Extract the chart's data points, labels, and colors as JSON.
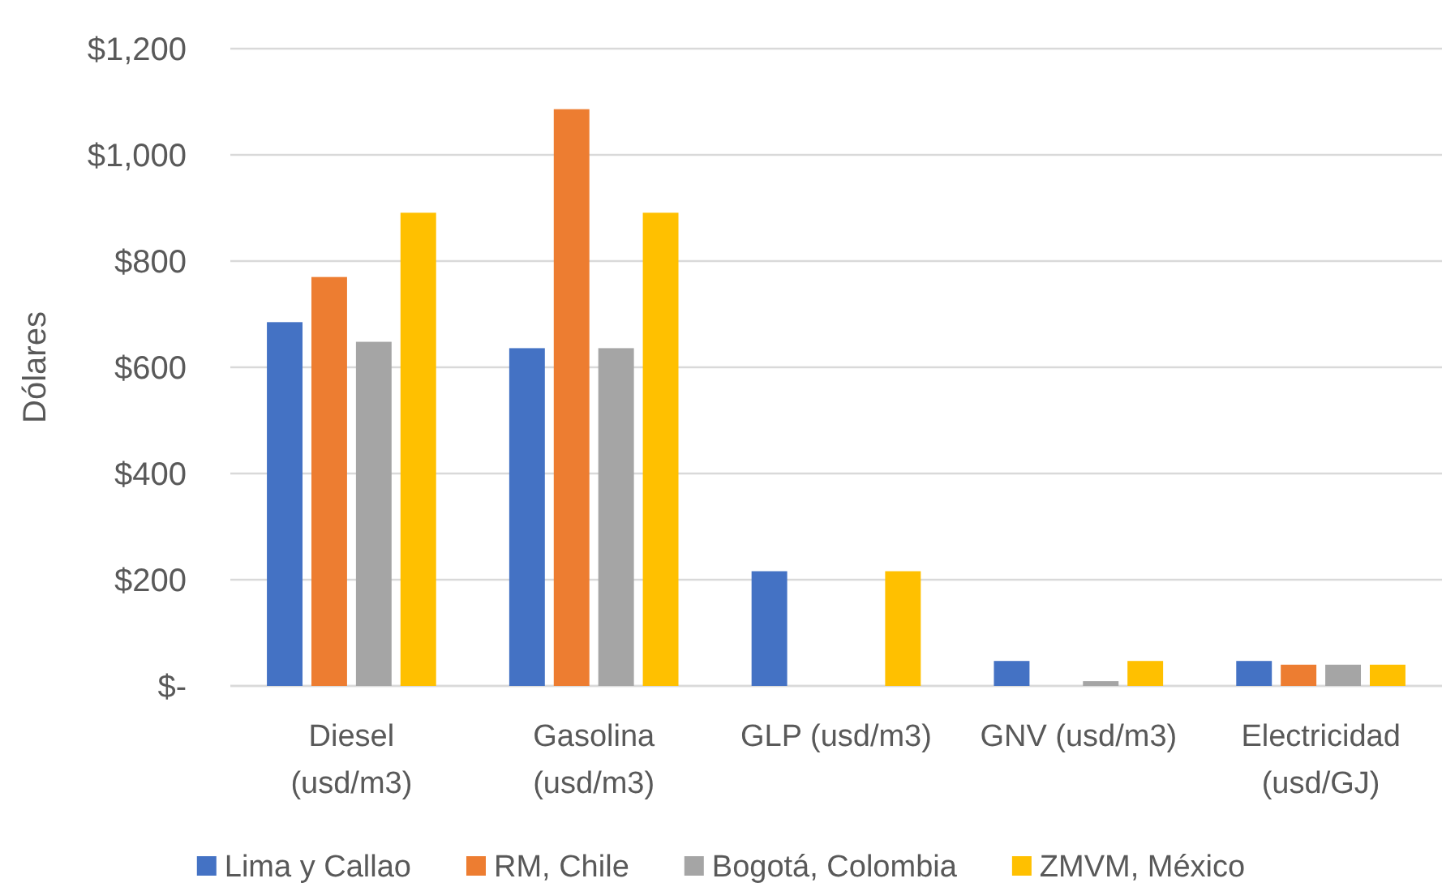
{
  "chart_data": {
    "type": "bar",
    "ylabel": "Dólares",
    "categories": [
      "Diesel (usd/m3)",
      "Gasolina (usd/m3)",
      "GLP (usd/m3)",
      "GNV (usd/m3)",
      "Electricidad (usd/GJ)"
    ],
    "series": [
      {
        "name": "Lima y Callao",
        "color": "#4472c4",
        "values": [
          685,
          636,
          216,
          47,
          47
        ]
      },
      {
        "name": "RM, Chile",
        "color": "#ed7d31",
        "values": [
          770,
          1086,
          null,
          null,
          40
        ]
      },
      {
        "name": "Bogotá, Colombia",
        "color": "#a5a5a5",
        "values": [
          648,
          636,
          null,
          9,
          40
        ]
      },
      {
        "name": "ZMVM, México",
        "color": "#ffc000",
        "values": [
          891,
          891,
          216,
          47,
          40
        ]
      }
    ],
    "ylim": [
      0,
      1200
    ],
    "yticks": [
      {
        "value": 0,
        "label": "$-"
      },
      {
        "value": 200,
        "label": "$200"
      },
      {
        "value": 400,
        "label": "$400"
      },
      {
        "value": 600,
        "label": "$600"
      },
      {
        "value": 800,
        "label": "$800"
      },
      {
        "value": 1000,
        "label": "$1,000"
      },
      {
        "value": 1200,
        "label": "$1,200"
      }
    ],
    "grid": "y",
    "legend": "bottom"
  }
}
